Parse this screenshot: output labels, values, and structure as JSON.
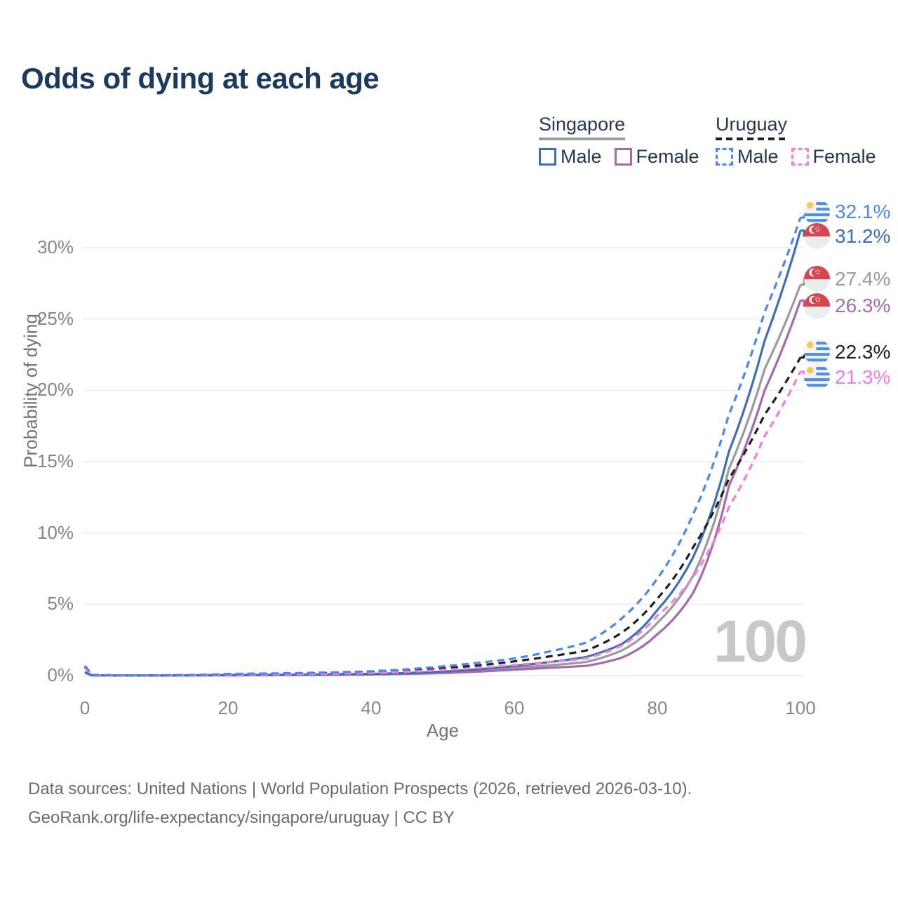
{
  "title": "Odds of dying at each age",
  "watermark_age": "100",
  "legend": {
    "groups": [
      {
        "country": "Singapore",
        "line_style": "solid",
        "line_color": "#9b9b9b",
        "items": [
          {
            "label": "Male",
            "color": "#3d6fb4",
            "dashed": false
          },
          {
            "label": "Female",
            "color": "#a868ae",
            "dashed": false
          }
        ]
      },
      {
        "country": "Uruguay",
        "line_style": "dashed",
        "line_color": "#1f1f1f",
        "items": [
          {
            "label": "Male",
            "color": "#4b87f2",
            "dashed": true
          },
          {
            "label": "Female",
            "color": "#f97ae1",
            "dashed": true
          }
        ]
      }
    ]
  },
  "axes": {
    "x_title": "Age",
    "y_title": "Probability of dying",
    "x_ticks": [
      {
        "value": 0,
        "label": "0"
      },
      {
        "value": 20,
        "label": "20"
      },
      {
        "value": 40,
        "label": "40"
      },
      {
        "value": 60,
        "label": "60"
      },
      {
        "value": 80,
        "label": "80"
      },
      {
        "value": 100,
        "label": "100"
      }
    ],
    "y_ticks": [
      {
        "value": 0,
        "label": "0%"
      },
      {
        "value": 5,
        "label": "5%"
      },
      {
        "value": 10,
        "label": "10%"
      },
      {
        "value": 15,
        "label": "15%"
      },
      {
        "value": 20,
        "label": "20%"
      },
      {
        "value": 25,
        "label": "25%"
      },
      {
        "value": 30,
        "label": "30%"
      }
    ]
  },
  "footer": {
    "line1": "Data sources: United Nations | World Population Prospects (2026, retrieved 2026-03-10).",
    "line2": "GeoRank.org/life-expectancy/singapore/uruguay | CC BY"
  },
  "chart_data": {
    "type": "line",
    "title": "Odds of dying at each age",
    "xlabel": "Age",
    "ylabel": "Probability of dying",
    "xlim": [
      0,
      100
    ],
    "ylim_pct": [
      0,
      33
    ],
    "grid": "horizontal",
    "legend_position": "top-right",
    "sample_ages": [
      0,
      1,
      5,
      10,
      20,
      30,
      40,
      50,
      55,
      60,
      65,
      70,
      75,
      80,
      85,
      90,
      95,
      100
    ],
    "series": [
      {
        "name": "Singapore Male",
        "country": "Singapore",
        "sex": "male",
        "color": "#3d6fb4",
        "dashed": false,
        "flag": "sg",
        "end_value_pct": 31.2,
        "end_label": "31.2%",
        "values_pct": [
          0.25,
          0.02,
          0.01,
          0.01,
          0.04,
          0.07,
          0.12,
          0.28,
          0.45,
          0.68,
          0.95,
          1.3,
          2.2,
          4.6,
          8.3,
          15.7,
          23.5,
          31.2
        ]
      },
      {
        "name": "Singapore Female",
        "country": "Singapore",
        "sex": "female",
        "color": "#a868ae",
        "dashed": false,
        "flag": "sg",
        "end_value_pct": 26.3,
        "end_label": "26.3%",
        "values_pct": [
          0.2,
          0.015,
          0.008,
          0.008,
          0.02,
          0.04,
          0.08,
          0.18,
          0.28,
          0.42,
          0.55,
          0.68,
          1.25,
          2.9,
          5.8,
          13.3,
          20.0,
          26.3
        ]
      },
      {
        "name": "Singapore Both sexes",
        "country": "Singapore",
        "sex": "total",
        "color": "#9b9b9b",
        "dashed": false,
        "flag": "sg",
        "end_value_pct": 27.4,
        "end_label": "27.4%",
        "values_pct": [
          0.22,
          0.018,
          0.009,
          0.009,
          0.03,
          0.05,
          0.1,
          0.23,
          0.36,
          0.55,
          0.72,
          0.95,
          1.75,
          3.7,
          7.0,
          14.5,
          21.5,
          27.4
        ]
      },
      {
        "name": "Uruguay Male",
        "country": "Uruguay",
        "sex": "male",
        "color": "#4b87f2",
        "dashed": true,
        "flag": "uy",
        "end_value_pct": 32.1,
        "end_label": "32.1%",
        "values_pct": [
          0.7,
          0.05,
          0.02,
          0.02,
          0.12,
          0.18,
          0.3,
          0.65,
          0.9,
          1.2,
          1.7,
          2.3,
          4.0,
          6.8,
          11.3,
          18.3,
          25.5,
          32.1
        ]
      },
      {
        "name": "Uruguay Female",
        "country": "Uruguay",
        "sex": "female",
        "color": "#f97ae1",
        "dashed": true,
        "flag": "uy",
        "end_value_pct": 21.3,
        "end_label": "21.3%",
        "values_pct": [
          0.55,
          0.04,
          0.015,
          0.015,
          0.06,
          0.1,
          0.18,
          0.4,
          0.55,
          0.75,
          0.95,
          1.2,
          2.1,
          4.2,
          6.9,
          11.8,
          16.8,
          21.3
        ]
      },
      {
        "name": "Uruguay Both sexes",
        "country": "Uruguay",
        "sex": "total",
        "color": "#1f1f1f",
        "dashed": true,
        "flag": "uy",
        "end_value_pct": 22.3,
        "end_label": "22.3%",
        "values_pct": [
          0.6,
          0.045,
          0.018,
          0.018,
          0.09,
          0.14,
          0.25,
          0.52,
          0.72,
          1.0,
          1.35,
          1.75,
          3.0,
          5.4,
          9.0,
          13.8,
          18.3,
          22.3
        ]
      }
    ]
  }
}
